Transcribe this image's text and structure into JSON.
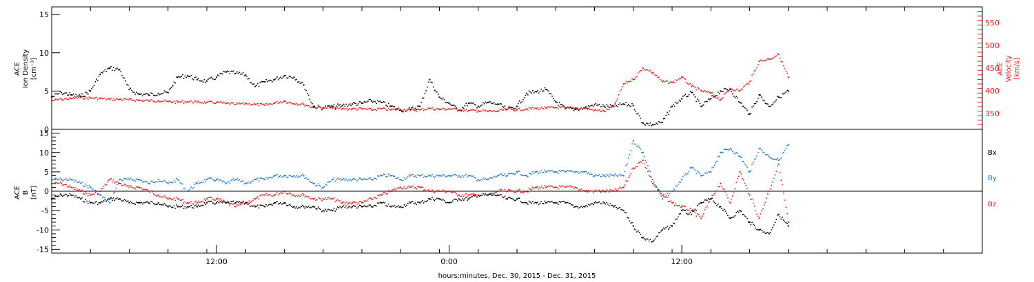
{
  "chart_data": [
    {
      "type": "scatter",
      "panel": "top",
      "ylabel_left": [
        "ACE",
        "Ion Density",
        "[cm⁻³]"
      ],
      "ylabel_right": [
        "ACE",
        "Velocity",
        "[km/s]"
      ],
      "ylim_left": [
        0,
        16
      ],
      "yticks_left": [
        0,
        5,
        10,
        15
      ],
      "ylim_right": [
        315,
        585
      ],
      "yticks_right": [
        350,
        400,
        450,
        500,
        550
      ],
      "colors": {
        "density": "#000000",
        "velocity": "#e41a1c"
      },
      "series": [
        {
          "key": "density",
          "axis": "left",
          "color": "#000000",
          "x": [
            0.0,
            0.5,
            1.0,
            1.5,
            2.0,
            2.5,
            3.0,
            3.5,
            4.0,
            4.5,
            5.0,
            5.5,
            6.0,
            6.5,
            7.0,
            7.5,
            8.0,
            8.5,
            9.0,
            9.5,
            10.0,
            10.5,
            11.0,
            11.5,
            12.0,
            12.5,
            13.0,
            13.5,
            14.0,
            14.5,
            15.0,
            15.5,
            16.0,
            16.5,
            17.0,
            17.5,
            18.0,
            18.5,
            19.0,
            19.5,
            20.0,
            20.5,
            21.0,
            21.5,
            22.0,
            22.5,
            23.0,
            23.5,
            24.0,
            24.5,
            25.0,
            25.5,
            26.0,
            26.5,
            27.0,
            27.5,
            28.0,
            28.5,
            29.0,
            29.5,
            30.0,
            30.5,
            31.0,
            31.5,
            32.0,
            32.5,
            33.0,
            33.5,
            34.0,
            34.5,
            35.0,
            35.5,
            36.0,
            36.5,
            37.0,
            37.5,
            38.0
          ],
          "y": [
            4.2,
            4.8,
            4.5,
            4.3,
            5.0,
            7.2,
            8.0,
            7.8,
            5.2,
            4.6,
            4.5,
            4.7,
            4.8,
            6.8,
            7.0,
            6.5,
            6.3,
            6.8,
            7.5,
            7.3,
            7.1,
            5.6,
            6.2,
            6.5,
            7.0,
            6.8,
            5.8,
            3.0,
            2.8,
            3.0,
            3.1,
            3.3,
            3.4,
            3.7,
            3.5,
            3.0,
            2.5,
            2.6,
            3.0,
            6.5,
            4.2,
            3.4,
            2.5,
            3.4,
            3.0,
            3.5,
            3.3,
            2.6,
            3.0,
            4.7,
            4.9,
            5.2,
            3.6,
            2.7,
            2.6,
            2.8,
            3.2,
            3.0,
            3.0,
            3.3,
            3.1,
            0.8,
            0.6,
            0.9,
            3.0,
            4.0,
            4.8,
            3.0,
            4.0,
            5.0,
            5.2,
            3.5,
            2.0,
            4.5,
            3.0,
            4.2,
            5.0
          ]
        },
        {
          "key": "velocity",
          "axis": "right",
          "color": "#e41a1c",
          "x": [
            0.0,
            0.5,
            1.0,
            1.5,
            2.0,
            2.5,
            3.0,
            3.5,
            4.0,
            4.5,
            5.0,
            5.5,
            6.0,
            6.5,
            7.0,
            7.5,
            8.0,
            8.5,
            9.0,
            9.5,
            10.0,
            10.5,
            11.0,
            11.5,
            12.0,
            12.5,
            13.0,
            13.5,
            14.0,
            14.5,
            15.0,
            15.5,
            16.0,
            16.5,
            17.0,
            17.5,
            18.0,
            18.5,
            19.0,
            19.5,
            20.0,
            20.5,
            21.0,
            21.5,
            22.0,
            22.5,
            23.0,
            23.5,
            24.0,
            24.5,
            25.0,
            25.5,
            26.0,
            26.5,
            27.0,
            27.5,
            28.0,
            28.5,
            29.0,
            29.5,
            30.0,
            30.5,
            31.0,
            31.5,
            32.0,
            32.5,
            33.0,
            33.5,
            34.0,
            34.5,
            35.0,
            35.5,
            36.0,
            36.5,
            37.0,
            37.5,
            38.0
          ],
          "y": [
            378,
            381,
            383,
            385,
            384,
            383,
            381,
            381,
            380,
            379,
            378,
            378,
            376,
            375,
            376,
            375,
            374,
            374,
            372,
            370,
            372,
            370,
            368,
            373,
            377,
            372,
            370,
            363,
            363,
            362,
            360,
            360,
            360,
            358,
            360,
            358,
            359,
            357,
            358,
            361,
            359,
            360,
            358,
            356,
            356,
            355,
            355,
            359,
            358,
            360,
            361,
            362,
            363,
            362,
            362,
            361,
            357,
            355,
            365,
            415,
            425,
            450,
            440,
            420,
            418,
            430,
            410,
            400,
            395,
            380,
            405,
            400,
            420,
            465,
            470,
            480,
            430
          ]
        }
      ]
    },
    {
      "type": "scatter",
      "panel": "bottom",
      "ylabel_left": [
        "ACE",
        "B",
        "[nT]"
      ],
      "ylim_left": [
        -16,
        16
      ],
      "yticks_left": [
        -15,
        -10,
        -5,
        0,
        5,
        10,
        15
      ],
      "xlabel": "hours:minutes, Dec. 30, 2015 - Dec. 31, 2015",
      "xlim_hours": [
        0,
        48
      ],
      "xticks": [
        {
          "hour": 8.5,
          "label": "12:00"
        },
        {
          "hour": 32.5,
          "label": "12:00"
        },
        {
          "hour": 20.5,
          "label": "0:00"
        }
      ],
      "zero_line": true,
      "legend": [
        "Bx",
        "By",
        "Bz"
      ],
      "colors": {
        "Bx": "#000000",
        "By": "#1f77d4",
        "Bz": "#e41a1c"
      },
      "series": [
        {
          "key": "Bx",
          "color": "#000000",
          "x": [
            0.0,
            0.5,
            1.0,
            1.5,
            2.0,
            2.5,
            3.0,
            3.5,
            4.0,
            4.5,
            5.0,
            5.5,
            6.0,
            6.5,
            7.0,
            7.5,
            8.0,
            8.5,
            9.0,
            9.5,
            10.0,
            10.5,
            11.0,
            11.5,
            12.0,
            12.5,
            13.0,
            13.5,
            14.0,
            14.5,
            15.0,
            15.5,
            16.0,
            16.5,
            17.0,
            17.5,
            18.0,
            18.5,
            19.0,
            19.5,
            20.0,
            20.5,
            21.0,
            21.5,
            22.0,
            22.5,
            23.0,
            23.5,
            24.0,
            24.5,
            25.0,
            25.5,
            26.0,
            26.5,
            27.0,
            27.5,
            28.0,
            28.5,
            29.0,
            29.5,
            30.0,
            30.5,
            31.0,
            31.5,
            32.0,
            32.5,
            33.0,
            33.5,
            34.0,
            34.5,
            35.0,
            35.5,
            36.0,
            36.5,
            37.0,
            37.5,
            38.0
          ],
          "y": [
            -2,
            -1,
            -1,
            -2,
            -3,
            -3,
            -2,
            -2,
            -3,
            -3,
            -3,
            -3,
            -4,
            -4,
            -4,
            -4,
            -3,
            -3,
            -3,
            -3,
            -3,
            -4,
            -4,
            -3,
            -3,
            -4,
            -4,
            -4,
            -5,
            -5,
            -4,
            -4,
            -4,
            -4,
            -3,
            -4,
            -4,
            -3,
            -3,
            -2,
            -2,
            -3,
            -2,
            -2,
            -1,
            -1,
            -1,
            -2,
            -2,
            -3,
            -3,
            -3,
            -3,
            -3,
            -4,
            -4,
            -3,
            -3,
            -4,
            -5,
            -9,
            -12,
            -13,
            -10,
            -9,
            -5,
            -6,
            -3,
            -2,
            -4,
            -7,
            -5,
            -8,
            -10,
            -11,
            -6,
            -9
          ]
        },
        {
          "key": "By",
          "color": "#1f77d4",
          "x": [
            0.0,
            0.5,
            1.0,
            1.5,
            2.0,
            2.5,
            3.0,
            3.5,
            4.0,
            4.5,
            5.0,
            5.5,
            6.0,
            6.5,
            7.0,
            7.5,
            8.0,
            8.5,
            9.0,
            9.5,
            10.0,
            10.5,
            11.0,
            11.5,
            12.0,
            12.5,
            13.0,
            13.5,
            14.0,
            14.5,
            15.0,
            15.5,
            16.0,
            16.5,
            17.0,
            17.5,
            18.0,
            18.5,
            19.0,
            19.5,
            20.0,
            20.5,
            21.0,
            21.5,
            22.0,
            22.5,
            23.0,
            23.5,
            24.0,
            24.5,
            25.0,
            25.5,
            26.0,
            26.5,
            27.0,
            27.5,
            28.0,
            28.5,
            29.0,
            29.5,
            30.0,
            30.5,
            31.0,
            31.5,
            32.0,
            32.5,
            33.0,
            33.5,
            34.0,
            34.5,
            35.0,
            35.5,
            36.0,
            36.5,
            37.0,
            37.5,
            38.0
          ],
          "y": [
            3,
            3,
            3,
            2,
            1,
            -1,
            -3,
            3,
            3,
            3,
            2,
            3,
            2,
            3,
            0,
            2,
            3,
            3,
            2,
            3,
            2,
            3,
            3,
            4,
            4,
            4,
            4,
            2,
            1,
            3,
            3,
            3,
            3,
            3,
            4,
            4,
            3,
            4,
            4,
            4,
            4,
            4,
            4,
            4,
            3,
            3,
            4,
            4,
            5,
            4,
            5,
            5,
            5,
            5,
            5,
            5,
            4,
            4,
            4,
            4,
            13,
            10,
            3,
            -2,
            0,
            3,
            6,
            4,
            5,
            10,
            11,
            9,
            5,
            11,
            9,
            8,
            12
          ]
        },
        {
          "key": "Bz",
          "color": "#e41a1c",
          "x": [
            0.0,
            0.5,
            1.0,
            1.5,
            2.0,
            2.5,
            3.0,
            3.5,
            4.0,
            4.5,
            5.0,
            5.5,
            6.0,
            6.5,
            7.0,
            7.5,
            8.0,
            8.5,
            9.0,
            9.5,
            10.0,
            10.5,
            11.0,
            11.5,
            12.0,
            12.5,
            13.0,
            13.5,
            14.0,
            14.5,
            15.0,
            15.5,
            16.0,
            16.5,
            17.0,
            17.5,
            18.0,
            18.5,
            19.0,
            19.5,
            20.0,
            20.5,
            21.0,
            21.5,
            22.0,
            22.5,
            23.0,
            23.5,
            24.0,
            24.5,
            25.0,
            25.5,
            26.0,
            26.5,
            27.0,
            27.5,
            28.0,
            28.5,
            29.0,
            29.5,
            30.0,
            30.5,
            31.0,
            31.5,
            32.0,
            32.5,
            33.0,
            33.5,
            34.0,
            34.5,
            35.0,
            35.5,
            36.0,
            36.5,
            37.0,
            37.5,
            38.0
          ],
          "y": [
            2,
            2,
            1,
            0,
            -1,
            0,
            3,
            2,
            1,
            1,
            0,
            -1,
            -2,
            -2,
            -3,
            -3,
            -2,
            -2,
            -3,
            -4,
            -3,
            -2,
            -1,
            -1,
            0,
            -1,
            -1,
            -2,
            -2,
            -2,
            -3,
            -3,
            -3,
            -2,
            -1,
            0,
            1,
            1,
            1,
            0,
            0,
            0,
            -1,
            -1,
            -1,
            -1,
            0,
            0,
            0,
            0,
            1,
            1,
            1,
            1,
            1,
            0,
            0,
            0,
            0,
            1,
            6,
            8,
            2,
            -1,
            -3,
            -4,
            -5,
            -7,
            -2,
            2,
            -3,
            5,
            -1,
            -7,
            0,
            7,
            -8
          ]
        }
      ]
    }
  ]
}
